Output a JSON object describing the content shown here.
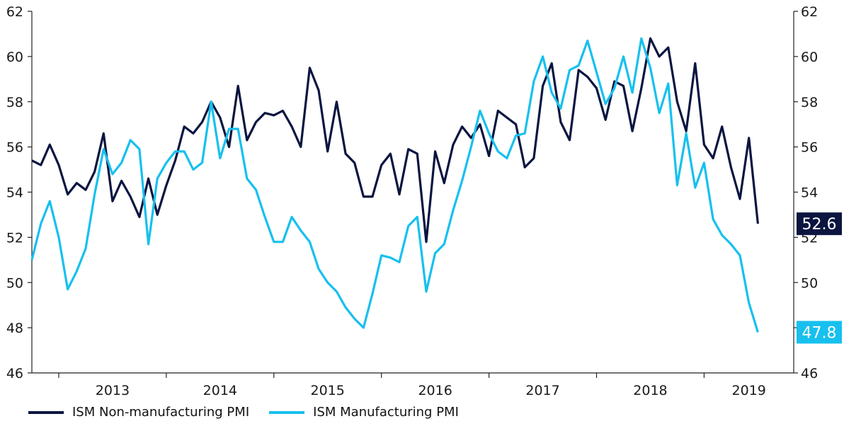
{
  "chart_data": {
    "type": "line",
    "title": "",
    "xlabel": "",
    "ylabel": "",
    "ylim": [
      46,
      62
    ],
    "y_ticks": [
      "46",
      "48",
      "50",
      "52",
      "54",
      "56",
      "58",
      "60",
      "62"
    ],
    "x_tick_labels": [
      "2013",
      "2014",
      "2015",
      "2016",
      "2017",
      "2018",
      "2019"
    ],
    "x_start": "2012-10",
    "x_end": "2019-11",
    "series": [
      {
        "name": "ISM Non-manufacturing PMI",
        "color": "#0a1540",
        "end_label": "52.6",
        "values": [
          55.4,
          55.2,
          56.1,
          55.2,
          53.9,
          54.4,
          54.1,
          54.9,
          56.6,
          53.6,
          54.5,
          53.8,
          52.9,
          54.6,
          53.0,
          54.3,
          55.4,
          56.9,
          56.6,
          57.1,
          58.0,
          57.3,
          56.0,
          58.7,
          56.3,
          57.1,
          57.5,
          57.4,
          57.6,
          56.9,
          56.0,
          59.5,
          58.5,
          55.8,
          58.0,
          55.7,
          55.3,
          53.8,
          53.8,
          55.2,
          55.7,
          53.9,
          55.9,
          55.7,
          51.8,
          55.8,
          54.4,
          56.1,
          56.9,
          56.4,
          57.0,
          55.6,
          57.6,
          57.3,
          57.0,
          55.1,
          55.5,
          58.7,
          59.7,
          57.1,
          56.3,
          59.4,
          59.1,
          58.6,
          57.2,
          58.9,
          58.7,
          56.7,
          58.6,
          60.8,
          60.0,
          60.4,
          58.0,
          56.7,
          59.7,
          56.1,
          55.5,
          56.9,
          55.1,
          53.7,
          56.4,
          52.6
        ]
      },
      {
        "name": "ISM Manufacturing PMI",
        "color": "#17c0ee",
        "end_label": "47.8",
        "values": [
          51.0,
          52.6,
          53.6,
          52.0,
          49.7,
          50.5,
          51.5,
          53.9,
          55.9,
          54.8,
          55.3,
          56.3,
          55.9,
          51.7,
          54.6,
          55.3,
          55.8,
          55.8,
          55.0,
          55.3,
          58.0,
          55.5,
          56.8,
          56.8,
          54.6,
          54.1,
          52.9,
          51.8,
          51.8,
          52.9,
          52.3,
          51.8,
          50.6,
          50.0,
          49.6,
          48.9,
          48.4,
          48.0,
          49.5,
          51.2,
          51.1,
          50.9,
          52.5,
          52.9,
          49.6,
          51.3,
          51.7,
          53.2,
          54.5,
          56.0,
          57.6,
          56.6,
          55.8,
          55.5,
          56.5,
          56.6,
          58.9,
          60.0,
          58.4,
          57.7,
          59.4,
          59.6,
          60.7,
          59.3,
          57.9,
          58.6,
          60.0,
          58.4,
          60.8,
          59.5,
          57.5,
          58.8,
          54.3,
          56.6,
          54.2,
          55.3,
          52.8,
          52.1,
          51.7,
          51.2,
          49.1,
          47.8
        ]
      }
    ]
  }
}
